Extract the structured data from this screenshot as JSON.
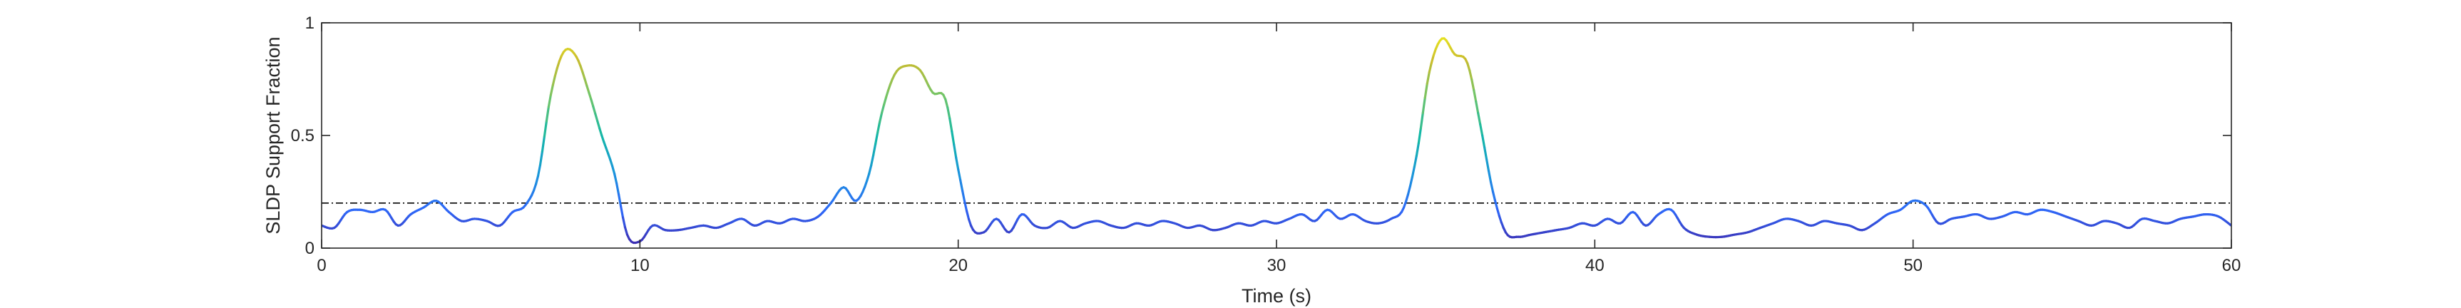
{
  "chart_data": {
    "type": "line",
    "title": "",
    "xlabel": "Time (s)",
    "ylabel": "SLDP Support Fraction",
    "xlim": [
      0,
      60
    ],
    "ylim": [
      0,
      1
    ],
    "xticks": [
      0,
      10,
      20,
      30,
      40,
      50,
      60
    ],
    "yticks": [
      0,
      0.5,
      1
    ],
    "xtick_labels": [
      "0",
      "10",
      "20",
      "30",
      "40",
      "50",
      "60"
    ],
    "ytick_labels": [
      "0",
      "0.5",
      "1"
    ],
    "grid": false,
    "colormap": "parula",
    "colormap_stops": [
      "#3e26a8",
      "#2e67f8",
      "#1b96db",
      "#14b8a6",
      "#6fc56a",
      "#c9bc2e",
      "#f9fb15"
    ],
    "threshold": {
      "y": 0.2,
      "style": "dash-dot",
      "color": "#000000"
    },
    "series": [
      {
        "x": [
          0,
          0.4,
          0.8,
          1.2,
          1.6,
          2.0,
          2.4,
          2.8,
          3.2,
          3.6,
          4.0,
          4.4,
          4.8,
          5.2,
          5.6,
          6.0,
          6.4,
          6.8,
          7.2,
          7.6,
          8.0,
          8.4,
          8.8,
          9.2,
          9.6,
          10.0,
          10.4,
          10.8,
          11.2,
          11.6,
          12.0,
          12.4,
          12.8,
          13.2,
          13.6,
          14.0,
          14.4,
          14.8,
          15.2,
          15.6,
          16.0,
          16.4,
          16.8,
          17.2,
          17.6,
          18.0,
          18.4,
          18.8,
          19.2,
          19.6,
          20.0,
          20.4,
          20.8,
          21.2,
          21.6,
          22.0,
          22.4,
          22.8,
          23.2,
          23.6,
          24.0,
          24.4,
          24.8,
          25.2,
          25.6,
          26.0,
          26.4,
          26.8,
          27.2,
          27.6,
          28.0,
          28.4,
          28.8,
          29.2,
          29.6,
          30.0,
          30.4,
          30.8,
          31.2,
          31.6,
          32.0,
          32.4,
          32.8,
          33.2,
          33.6,
          34.0,
          34.4,
          34.8,
          35.2,
          35.6,
          36.0,
          36.4,
          36.8,
          37.2,
          37.6,
          38.0,
          38.4,
          38.8,
          39.2,
          39.6,
          40.0,
          40.4,
          40.8,
          41.2,
          41.6,
          42.0,
          42.4,
          42.8,
          43.2,
          43.6,
          44.0,
          44.4,
          44.8,
          45.2,
          45.6,
          46.0,
          46.4,
          46.8,
          47.2,
          47.6,
          48.0,
          48.4,
          48.8,
          49.2,
          49.6,
          50.0,
          50.4,
          50.8,
          51.2,
          51.6,
          52.0,
          52.4,
          52.8,
          53.2,
          53.6,
          54.0,
          54.4,
          54.8,
          55.2,
          55.6,
          56.0,
          56.4,
          56.8,
          57.2,
          57.6,
          58.0,
          58.4,
          58.8,
          59.2,
          59.6,
          60.0
        ],
        "y": [
          0.1,
          0.09,
          0.16,
          0.17,
          0.16,
          0.17,
          0.1,
          0.15,
          0.18,
          0.21,
          0.16,
          0.12,
          0.13,
          0.12,
          0.1,
          0.16,
          0.19,
          0.32,
          0.68,
          0.87,
          0.85,
          0.69,
          0.5,
          0.33,
          0.06,
          0.03,
          0.1,
          0.08,
          0.08,
          0.09,
          0.1,
          0.09,
          0.11,
          0.13,
          0.1,
          0.12,
          0.11,
          0.13,
          0.12,
          0.14,
          0.2,
          0.27,
          0.21,
          0.33,
          0.6,
          0.77,
          0.81,
          0.79,
          0.69,
          0.66,
          0.35,
          0.1,
          0.07,
          0.13,
          0.07,
          0.15,
          0.1,
          0.09,
          0.12,
          0.09,
          0.11,
          0.12,
          0.1,
          0.09,
          0.11,
          0.1,
          0.12,
          0.11,
          0.09,
          0.1,
          0.08,
          0.09,
          0.11,
          0.1,
          0.12,
          0.11,
          0.13,
          0.15,
          0.12,
          0.17,
          0.13,
          0.15,
          0.12,
          0.11,
          0.13,
          0.18,
          0.41,
          0.78,
          0.93,
          0.86,
          0.82,
          0.55,
          0.25,
          0.07,
          0.05,
          0.06,
          0.07,
          0.08,
          0.09,
          0.11,
          0.1,
          0.13,
          0.11,
          0.16,
          0.1,
          0.15,
          0.17,
          0.09,
          0.06,
          0.05,
          0.05,
          0.06,
          0.07,
          0.09,
          0.11,
          0.13,
          0.12,
          0.1,
          0.12,
          0.11,
          0.1,
          0.08,
          0.11,
          0.15,
          0.17,
          0.21,
          0.19,
          0.11,
          0.13,
          0.14,
          0.15,
          0.13,
          0.14,
          0.16,
          0.15,
          0.17,
          0.16,
          0.14,
          0.12,
          0.1,
          0.12,
          0.11,
          0.09,
          0.13,
          0.12,
          0.11,
          0.13,
          0.14,
          0.15,
          0.14,
          0.1
        ]
      }
    ]
  }
}
